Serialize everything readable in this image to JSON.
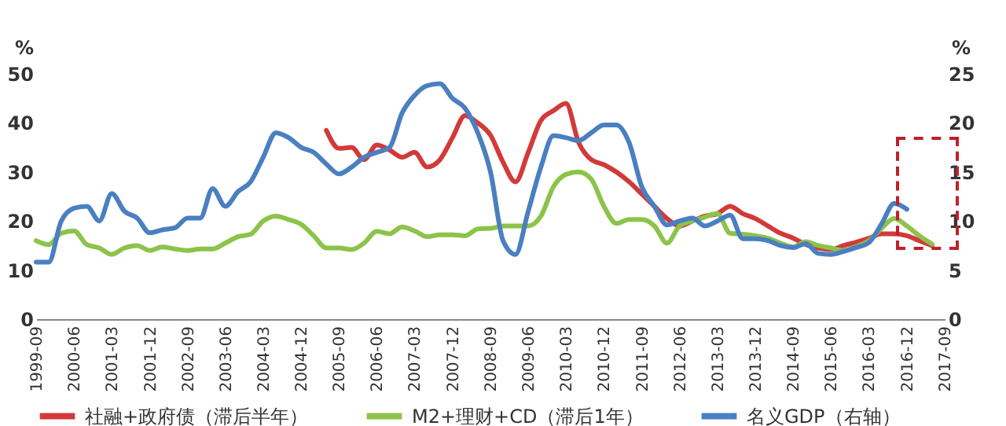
{
  "chart_data": {
    "type": "line",
    "ylabel": "%",
    "y2label": "%",
    "x": [
      "1999-09",
      "1999-12",
      "2000-03",
      "2000-06",
      "2000-09",
      "2000-12",
      "2001-03",
      "2001-06",
      "2001-09",
      "2001-12",
      "2002-03",
      "2002-06",
      "2002-09",
      "2002-12",
      "2003-03",
      "2003-06",
      "2003-09",
      "2003-12",
      "2004-03",
      "2004-06",
      "2004-09",
      "2004-12",
      "2005-03",
      "2005-06",
      "2005-09",
      "2005-12",
      "2006-03",
      "2006-06",
      "2006-09",
      "2006-12",
      "2007-03",
      "2007-06",
      "2007-09",
      "2007-12",
      "2008-03",
      "2008-06",
      "2008-09",
      "2008-12",
      "2009-03",
      "2009-06",
      "2009-09",
      "2009-12",
      "2010-03",
      "2010-06",
      "2010-09",
      "2010-12",
      "2011-03",
      "2011-06",
      "2011-09",
      "2011-12",
      "2012-03",
      "2012-06",
      "2012-09",
      "2012-12",
      "2013-03",
      "2013-06",
      "2013-09",
      "2013-12",
      "2014-03",
      "2014-06",
      "2014-09",
      "2014-12",
      "2015-03",
      "2015-06",
      "2015-09",
      "2015-12",
      "2016-03",
      "2016-06",
      "2016-09",
      "2016-12",
      "2017-03",
      "2017-06"
    ],
    "series": [
      {
        "name": "社融+政府债（滞后半年）",
        "color": "#d23a3a",
        "values": [
          null,
          null,
          null,
          null,
          null,
          null,
          null,
          null,
          null,
          null,
          null,
          null,
          null,
          null,
          null,
          null,
          null,
          null,
          null,
          null,
          null,
          null,
          null,
          38.5,
          34.8,
          35,
          32.5,
          35.5,
          34.5,
          33,
          34,
          31,
          32.5,
          37,
          41.5,
          40,
          37.5,
          32,
          28,
          34,
          40.5,
          42.5,
          44,
          36,
          32.5,
          31.5,
          30,
          28,
          25.5,
          23,
          20.5,
          19,
          20,
          21,
          21.5,
          23,
          21.5,
          20.5,
          19,
          17.5,
          16.5,
          15.2,
          14.5,
          14.2,
          15,
          15.7,
          16.5,
          17.4,
          17.4,
          17,
          16,
          15
        ]
      },
      {
        "name": "M2+理财+CD（滞后1年）",
        "color": "#8cc34a",
        "values": [
          16,
          15.2,
          17.5,
          18,
          15.2,
          14.5,
          13.2,
          14.5,
          15,
          14,
          14.7,
          14.3,
          14,
          14.3,
          14.3,
          15.5,
          16.8,
          17.3,
          20,
          21,
          20.3,
          19.3,
          17,
          14.5,
          14.5,
          14.2,
          15.5,
          17.9,
          17.4,
          18.8,
          18,
          16.8,
          17.2,
          17.2,
          17,
          18.4,
          18.5,
          19,
          19,
          19,
          21,
          27,
          29.5,
          30,
          28.5,
          23,
          19.5,
          20.3,
          20.3,
          19,
          15.5,
          19,
          20,
          20.8,
          21.5,
          17.5,
          17.3,
          17,
          16.5,
          15.5,
          14.7,
          15.8,
          15,
          14.5,
          14,
          14.8,
          16,
          18.5,
          20.5,
          19,
          17,
          15.3
        ]
      },
      {
        "name": "名义GDP（右轴）",
        "color": "#4a7fc1",
        "axis": "y2",
        "values": [
          5.8,
          5.8,
          10,
          11.3,
          11.5,
          10,
          12.8,
          11,
          10.3,
          8.8,
          9.1,
          9.3,
          10.3,
          10.3,
          13.3,
          11.5,
          13,
          14,
          16.5,
          19,
          18.5,
          17.5,
          17,
          15.8,
          14.8,
          15.5,
          16.5,
          17,
          17.5,
          21,
          22.8,
          23.8,
          24,
          22.5,
          21.5,
          19,
          15,
          8,
          6.6,
          11,
          15.5,
          18.7,
          18.5,
          18.2,
          19,
          19.8,
          19.8,
          18,
          13.5,
          11.5,
          9.6,
          10,
          10.3,
          9.5,
          10,
          10.6,
          8.2,
          8.2,
          8,
          7.5,
          7.3,
          7.7,
          6.7,
          6.6,
          6.9,
          7.3,
          7.8,
          9.7,
          11.8,
          11.2,
          null,
          null
        ]
      }
    ],
    "xlim": [
      "1999-09",
      "2017-09"
    ],
    "xticks": [
      "1999-09",
      "2000-06",
      "2001-03",
      "2001-12",
      "2002-09",
      "2003-06",
      "2004-03",
      "2004-12",
      "2005-09",
      "2006-06",
      "2007-03",
      "2007-12",
      "2008-09",
      "2009-06",
      "2010-03",
      "2010-12",
      "2011-09",
      "2012-06",
      "2013-03",
      "2013-12",
      "2014-09",
      "2015-06",
      "2016-03",
      "2016-12",
      "2017-09"
    ],
    "ylim": [
      0,
      50
    ],
    "yticks": [
      0,
      10,
      20,
      30,
      40,
      50
    ],
    "y2lim": [
      0,
      25
    ],
    "y2ticks": [
      0,
      5,
      10,
      15,
      20,
      25
    ],
    "grid": false,
    "legend": "bottom",
    "line_style": "solid",
    "marker": "none"
  }
}
